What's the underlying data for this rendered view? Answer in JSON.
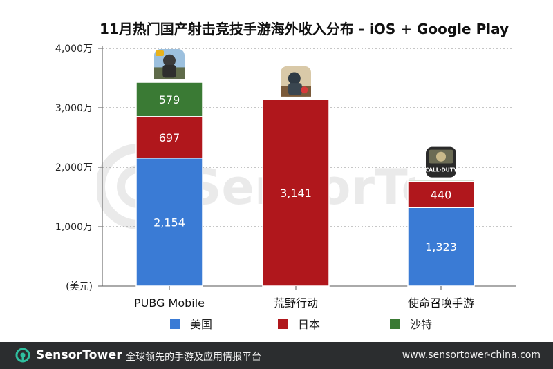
{
  "title": "11月热门国产射击竞技手游海外收入分布 - iOS + Google Play",
  "chart_data": {
    "type": "bar",
    "stacked": true,
    "categories": [
      "PUBG Mobile",
      "荒野行动",
      "使命召唤手游"
    ],
    "series": [
      {
        "name": "美国",
        "color": "#3a7bd5",
        "values": [
          2154,
          0,
          1323
        ],
        "labels": [
          "2,154",
          "",
          "1,323"
        ]
      },
      {
        "name": "日本",
        "color": "#b0171c",
        "values": [
          697,
          3141,
          440
        ],
        "labels": [
          "697",
          "3,141",
          "440"
        ]
      },
      {
        "name": "沙特",
        "color": "#3a7a34",
        "values": [
          579,
          0,
          20
        ],
        "labels": [
          "579",
          "",
          ""
        ]
      }
    ],
    "ylim": [
      0,
      4000
    ],
    "yticks": [
      0,
      1000,
      2000,
      3000,
      4000
    ],
    "ytick_labels": [
      "(美元)",
      "1,000万",
      "2,000万",
      "3,000万",
      "4,000万"
    ],
    "grid": true,
    "legend_position": "bottom"
  },
  "icons": [
    "pubg-mobile-app-icon",
    "knives-out-app-icon",
    "call-of-duty-mobile-app-icon"
  ],
  "icon_texts": {
    "cod": "CALL·DUTY"
  },
  "watermark": {
    "text": "SensorTower"
  },
  "footer": {
    "brand_part1": "Sensor",
    "brand_part2": "Tower",
    "slogan": "全球领先的手游及应用情报平台",
    "url": "www.sensortower-china.com"
  }
}
